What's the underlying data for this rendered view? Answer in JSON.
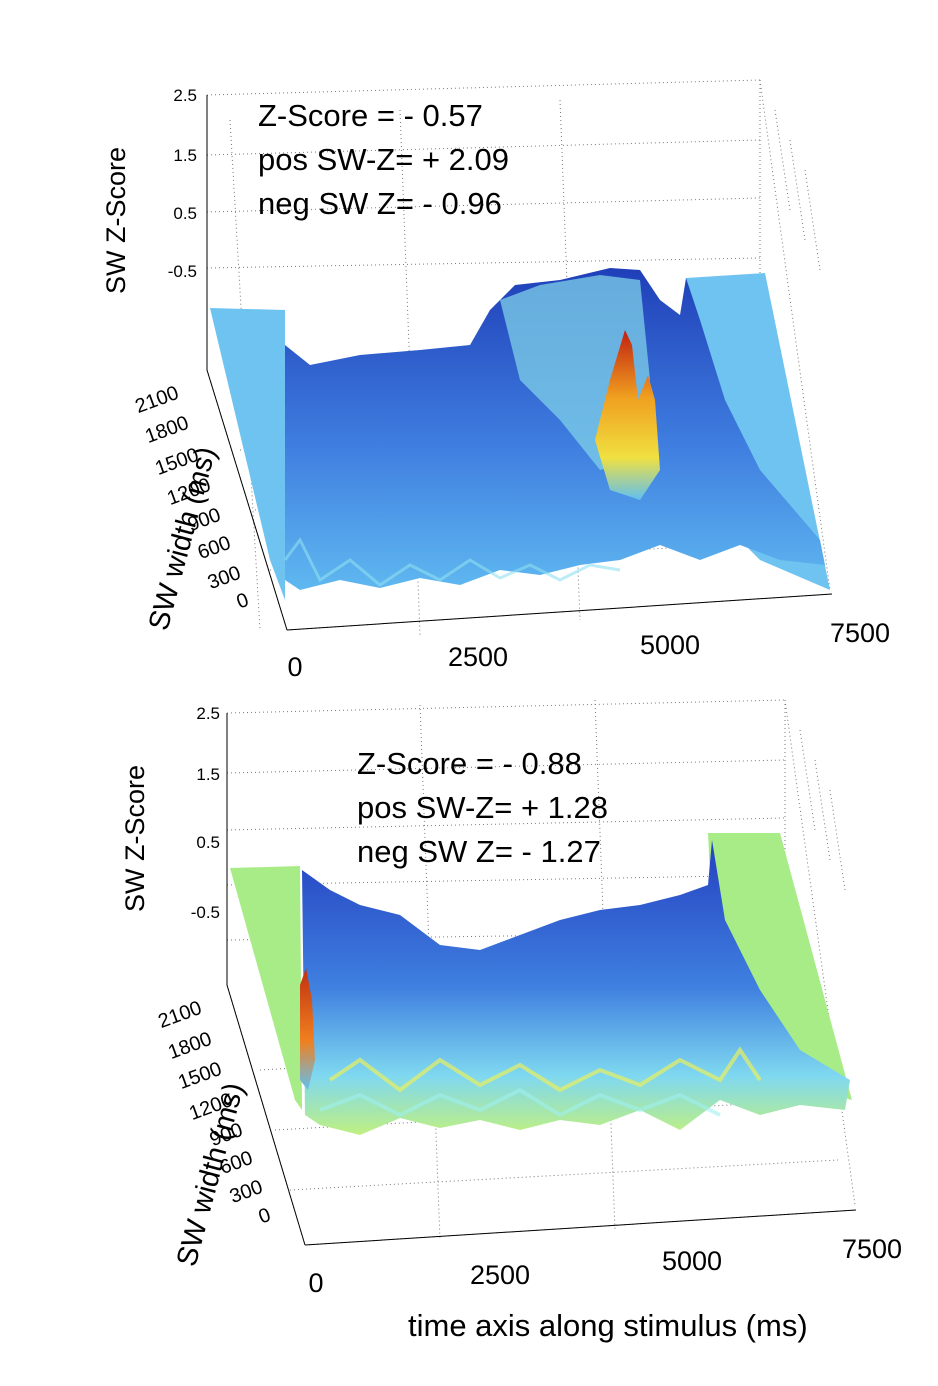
{
  "xlabel": "time axis along stimulus (ms)",
  "chart_data": [
    {
      "type": "surface",
      "title": "",
      "xlabel": "",
      "ylabel": "SW width (ms)",
      "zlabel": "SW Z-Score",
      "x_ticks": [
        "0",
        "2500",
        "5000",
        "7500"
      ],
      "y_ticks": [
        "0",
        "300",
        "600",
        "900",
        "1200",
        "1500",
        "1800",
        "2100"
      ],
      "z_ticks": [
        "2.5",
        "1.5",
        "0.5",
        "-0.5"
      ],
      "x_range": [
        0,
        7500
      ],
      "y_range": [
        0,
        2100
      ],
      "z_range": [
        -1.5,
        2.5
      ],
      "colormap": "jet",
      "grid": true,
      "annotations": [
        "Z-Score = - 0.57",
        "pos SW-Z= + 2.09",
        "neg SW Z= - 0.96"
      ],
      "stats": {
        "z_score": -0.57,
        "pos_sw_z": 2.09,
        "neg_sw_z": -0.96
      }
    },
    {
      "type": "surface",
      "title": "",
      "xlabel": "time axis along stimulus (ms)",
      "ylabel": "SW width (ms)",
      "zlabel": "SW Z-Score",
      "x_ticks": [
        "0",
        "2500",
        "5000",
        "7500"
      ],
      "y_ticks": [
        "0",
        "300",
        "600",
        "900",
        "1200",
        "1500",
        "1800",
        "2100"
      ],
      "z_ticks": [
        "2.5",
        "1.5",
        "0.5",
        "-0.5"
      ],
      "x_range": [
        0,
        7500
      ],
      "y_range": [
        0,
        2100
      ],
      "z_range": [
        -1.5,
        2.5
      ],
      "colormap": "jet",
      "grid": true,
      "annotations": [
        "Z-Score = - 0.88",
        "pos SW-Z= + 1.28",
        "neg SW Z=  - 1.27"
      ],
      "stats": {
        "z_score": -0.88,
        "pos_sw_z": 1.28,
        "neg_sw_z": -1.27
      }
    }
  ]
}
